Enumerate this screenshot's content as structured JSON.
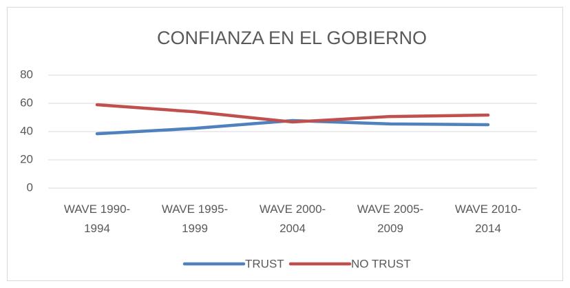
{
  "chart_data": {
    "type": "line",
    "title": "CONFIANZA EN EL GOBIERNO",
    "categories": [
      "WAVE 1990-1994",
      "WAVE 1995-1999",
      "WAVE 2000-2004",
      "WAVE 2005-2009",
      "WAVE 2010-2014"
    ],
    "series": [
      {
        "name": "TRUST",
        "color": "#4f81bd",
        "values": [
          38.5,
          42.3,
          47.8,
          45.4,
          44.9
        ]
      },
      {
        "name": "NO TRUST",
        "color": "#c0504d",
        "values": [
          59,
          54,
          46.8,
          50.7,
          51.7
        ]
      }
    ],
    "ylim": [
      0,
      80
    ],
    "yticks": [
      0,
      20,
      40,
      60,
      80
    ],
    "grid": true,
    "legend": "bottom"
  }
}
